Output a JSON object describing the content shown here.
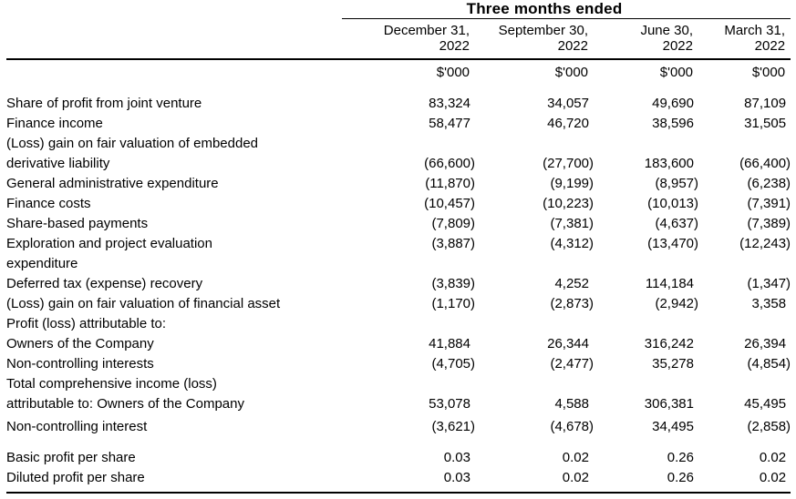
{
  "page": {
    "background": "#ffffff",
    "text_color": "#000000",
    "rule_color": "#000000"
  },
  "table": {
    "title": "Three months ended",
    "unit_label": "$'000",
    "column_headers": [
      "December 31,\n2022",
      "September 30,\n2022",
      "June 30,\n2022",
      "March 31,\n2022"
    ],
    "rows": [
      {
        "label": "Share of profit from joint venture",
        "values": [
          "83,324",
          "34,057",
          "49,690",
          "87,109"
        ]
      },
      {
        "label": "Finance income",
        "values": [
          "58,477",
          "46,720",
          "38,596",
          "31,505"
        ]
      },
      {
        "label": "(Loss) gain on fair valuation of embedded\nderivative liability",
        "values": [
          "(66,600)",
          "(27,700)",
          "183,600",
          "(66,400)"
        ]
      },
      {
        "label": "General administrative expenditure",
        "values": [
          "(11,870)",
          "(9,199)",
          "(8,957)",
          "(6,238)"
        ]
      },
      {
        "label": "Finance costs",
        "values": [
          "(10,457)",
          "(10,223)",
          "(10,013)",
          "(7,391)"
        ]
      },
      {
        "label": "Share-based payments",
        "values": [
          "(7,809)",
          "(7,381)",
          "(4,637)",
          "(7,389)"
        ]
      },
      {
        "label": "Exploration and project evaluation\nexpenditure",
        "values": [
          "(3,887)",
          "(4,312)",
          "(13,470)",
          "(12,243)"
        ],
        "valign": "top"
      },
      {
        "label": "Deferred tax (expense) recovery",
        "values": [
          "(3,839)",
          "4,252",
          "114,184",
          "(1,347)"
        ]
      },
      {
        "label": "(Loss) gain on fair valuation of financial asset",
        "values": [
          "(1,170)",
          "(2,873)",
          "(2,942)",
          "3,358"
        ]
      },
      {
        "label": "Profit (loss) attributable to:",
        "values": [
          "",
          "",
          "",
          ""
        ]
      },
      {
        "label": "Owners of the Company",
        "values": [
          "41,884",
          "26,344",
          "316,242",
          "26,394"
        ]
      },
      {
        "label": "Non-controlling interests",
        "values": [
          "(4,705)",
          "(2,477)",
          "35,278",
          "(4,854)"
        ]
      },
      {
        "label": "Total comprehensive income (loss)\nattributable to: Owners of the Company",
        "values": [
          "53,078",
          "4,588",
          "306,381",
          "45,495"
        ]
      },
      {
        "label": "Non-controlling interest",
        "values": [
          "(3,621)",
          "(4,678)",
          "34,495",
          "(2,858)"
        ],
        "spacing": "sm"
      },
      {
        "label": "Basic profit per share",
        "values": [
          "0.03",
          "0.02",
          "0.26",
          "0.02"
        ],
        "spacing": "lg"
      },
      {
        "label": "Diluted profit per share",
        "values": [
          "0.03",
          "0.02",
          "0.26",
          "0.02"
        ]
      }
    ]
  }
}
